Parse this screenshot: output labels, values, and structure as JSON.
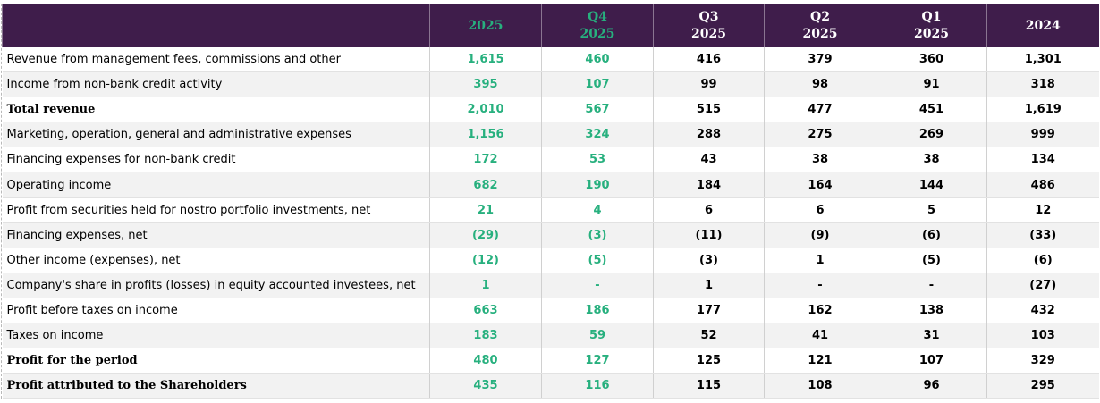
{
  "table": {
    "columns": [
      "2025",
      "Q4\n2025",
      "Q3\n2025",
      "Q2\n2025",
      "Q1\n2025",
      "2024"
    ],
    "rows": [
      {
        "label": "Revenue from management fees, commissions and other",
        "values": [
          "1,615",
          "460",
          "416",
          "379",
          "360",
          "1,301"
        ]
      },
      {
        "label": "Income from non-bank credit activity",
        "values": [
          "395",
          "107",
          "99",
          "98",
          "91",
          "318"
        ]
      },
      {
        "label": "Total revenue",
        "bold": true,
        "values": [
          "2,010",
          "567",
          "515",
          "477",
          "451",
          "1,619"
        ]
      },
      {
        "label": "Marketing, operation, general and administrative expenses",
        "values": [
          "1,156",
          "324",
          "288",
          "275",
          "269",
          "999"
        ]
      },
      {
        "label": "Financing expenses for non-bank credit",
        "values": [
          "172",
          "53",
          "43",
          "38",
          "38",
          "134"
        ]
      },
      {
        "label": "Operating income",
        "values": [
          "682",
          "190",
          "184",
          "164",
          "144",
          "486"
        ]
      },
      {
        "label": "Profit from securities held for nostro portfolio investments, net",
        "values": [
          "21",
          "4",
          "6",
          "6",
          "5",
          "12"
        ]
      },
      {
        "label": "Financing expenses, net",
        "values": [
          "(29)",
          "(3)",
          "(11)",
          "(9)",
          "(6)",
          "(33)"
        ]
      },
      {
        "label": "Other income (expenses), net",
        "values": [
          "(12)",
          "(5)",
          "(3)",
          "1",
          "(5)",
          "(6)"
        ]
      },
      {
        "label": "Company's share in profits (losses) in equity accounted investees, net",
        "values": [
          "1",
          "-",
          "1",
          "-",
          "-",
          "(27)"
        ]
      },
      {
        "label": "Profit before taxes on income",
        "values": [
          "663",
          "186",
          "177",
          "162",
          "138",
          "432"
        ]
      },
      {
        "label": "Taxes on income",
        "values": [
          "183",
          "59",
          "52",
          "41",
          "31",
          "103"
        ]
      },
      {
        "label": "Profit for the period",
        "bold": true,
        "values": [
          "480",
          "127",
          "125",
          "121",
          "107",
          "329"
        ]
      },
      {
        "label": "Profit attributed to the Shareholders",
        "bold": true,
        "values": [
          "435",
          "116",
          "115",
          "108",
          "96",
          "295"
        ]
      }
    ]
  }
}
